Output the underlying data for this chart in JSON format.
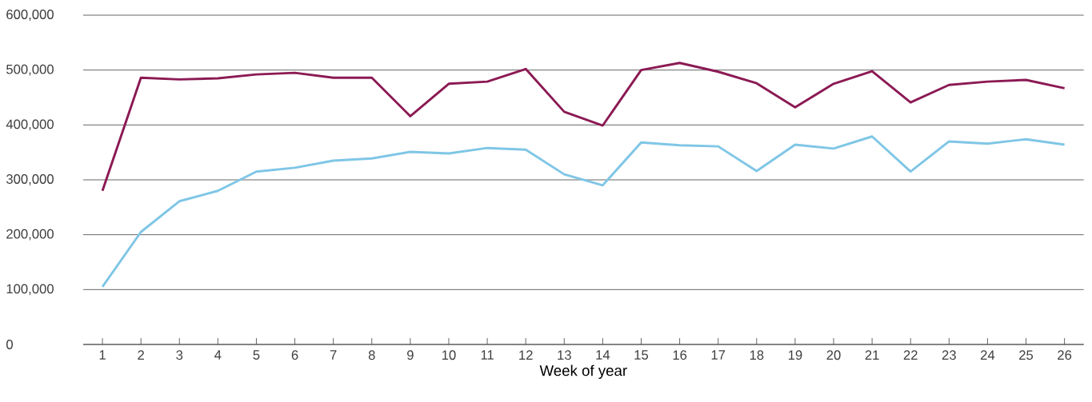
{
  "chart_data": {
    "type": "line",
    "xlabel": "Week of year",
    "categories": [
      "1",
      "2",
      "3",
      "4",
      "5",
      "6",
      "7",
      "8",
      "9",
      "10",
      "11",
      "12",
      "13",
      "14",
      "15",
      "16",
      "17",
      "18",
      "19",
      "20",
      "21",
      "22",
      "23",
      "24",
      "25",
      "26"
    ],
    "series": [
      {
        "color": "#8b1a54",
        "values": [
          280000,
          486000,
          483000,
          485000,
          492000,
          495000,
          486000,
          486000,
          416000,
          475000,
          479000,
          502000,
          424000,
          399000,
          500000,
          513000,
          497000,
          476000,
          432000,
          475000,
          498000,
          441000,
          473000,
          479000,
          482000,
          467000
        ]
      },
      {
        "color": "#7fc6e6",
        "values": [
          105000,
          205000,
          261000,
          280000,
          315000,
          322000,
          335000,
          339000,
          351000,
          348000,
          358000,
          355000,
          310000,
          290000,
          368000,
          363000,
          361000,
          316000,
          364000,
          357000,
          379000,
          315000,
          370000,
          366000,
          374000,
          364000
        ]
      }
    ],
    "ylim": [
      0,
      600000
    ],
    "yticks": [
      {
        "value": 0,
        "label": "0"
      },
      {
        "value": 100000,
        "label": "100,000"
      },
      {
        "value": 200000,
        "label": "200,000"
      },
      {
        "value": 300000,
        "label": "300,000"
      },
      {
        "value": 400000,
        "label": "400,000"
      },
      {
        "value": 500000,
        "label": "500,000"
      },
      {
        "value": 600000,
        "label": "600,000"
      }
    ],
    "grid": "y",
    "marker": "none",
    "line_style": "solid"
  }
}
